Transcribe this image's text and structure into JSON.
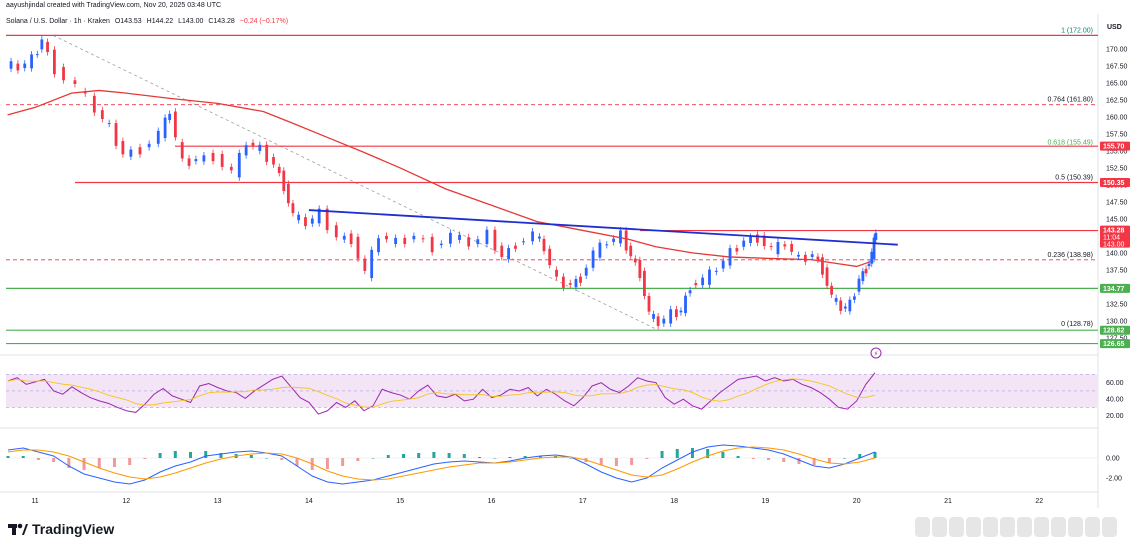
{
  "header": {
    "creator_line": "aayushjindal created with TradingView.com, Nov 20, 2025 03:48 UTC",
    "symbol": "Solana / U.S. Dollar · 1h · Kraken",
    "ohlc": {
      "open": "O143.53",
      "high": "H144.22",
      "low": "L143.00",
      "close": "C143.28",
      "change": "−0.24 (−0.17%)"
    },
    "currency": "USD"
  },
  "footer": {
    "brand": "TradingView"
  },
  "colors": {
    "up": "#2962ff",
    "down": "#f23645",
    "ma": "#e53935",
    "support": "#4caf50",
    "resistance": "#f23645",
    "trendline": "#1e2fd0",
    "rsi": "#9c27b0",
    "rsi_signal": "#f5c518",
    "macd": "#2962ff",
    "macd_signal": "#ff9800"
  },
  "chart_data": {
    "type": "candlestick",
    "timeframe": "1h",
    "y_axis_ticks": [
      "170.00",
      "167.50",
      "165.00",
      "162.50",
      "160.00",
      "157.50",
      "155.00",
      "152.50",
      "150.00",
      "147.50",
      "145.00",
      "142.50",
      "140.00",
      "137.50",
      "135.00",
      "132.50",
      "130.00",
      "127.50"
    ],
    "x_axis_ticks": [
      "11",
      "12",
      "13",
      "14",
      "15",
      "16",
      "17",
      "18",
      "19",
      "20",
      "21",
      "22"
    ],
    "ylim": [
      126.0,
      172.5
    ],
    "price_labels": [
      {
        "text": "155.70",
        "value": 155.7,
        "color": "#f23645"
      },
      {
        "text": "150.35",
        "value": 150.35,
        "color": "#f23645"
      },
      {
        "text": "143.28",
        "sub": "11:04",
        "sub2": "143.00",
        "value": 143.28,
        "color": "#f23645"
      },
      {
        "text": "134.77",
        "value": 134.77,
        "color": "#4caf50"
      },
      {
        "text": "128.62",
        "value": 128.62,
        "color": "#4caf50"
      },
      {
        "text": "126.65",
        "value": 126.65,
        "color": "#4caf50"
      }
    ],
    "horizontal_levels": [
      {
        "value": 172.0,
        "color": "#f23645",
        "style": "solid"
      },
      {
        "value": 161.8,
        "color": "#f23645",
        "style": "dashed"
      },
      {
        "value": 155.7,
        "color": "#f23645",
        "style": "solid"
      },
      {
        "value": 150.35,
        "color": "#f23645",
        "style": "solid"
      },
      {
        "value": 143.28,
        "color": "#f23645",
        "style": "solid"
      },
      {
        "value": 138.98,
        "color": "#f23645",
        "style": "dashed"
      },
      {
        "value": 134.77,
        "color": "#4caf50",
        "style": "solid"
      },
      {
        "value": 128.62,
        "color": "#4caf50",
        "style": "solid"
      },
      {
        "value": 126.65,
        "color": "#4caf50",
        "style": "solid"
      }
    ],
    "fib_levels": [
      {
        "label": "1 (172.00)",
        "value": 172.0
      },
      {
        "label": "0.764 (161.80)",
        "value": 161.8
      },
      {
        "label": "0.618 (155.49)",
        "value": 155.49
      },
      {
        "label": "0.5 (150.39)",
        "value": 150.39
      },
      {
        "label": "0.236 (138.98)",
        "value": 138.98
      },
      {
        "label": "0 (128.78)",
        "value": 128.78
      }
    ],
    "trendline": {
      "from": {
        "day": 14.0,
        "price": 146.3
      },
      "to": {
        "day": 20.45,
        "price": 141.2
      }
    },
    "diagonal_dashed": {
      "from": {
        "day": 11.2,
        "price": 172.0
      },
      "to": {
        "day": 17.8,
        "price": 128.8
      }
    },
    "moving_average": [
      {
        "day": 10.7,
        "price": 160.3
      },
      {
        "day": 11.0,
        "price": 161.4
      },
      {
        "day": 11.4,
        "price": 163.5
      },
      {
        "day": 11.7,
        "price": 163.9
      },
      {
        "day": 12.0,
        "price": 163.5
      },
      {
        "day": 12.5,
        "price": 162.7
      },
      {
        "day": 13.0,
        "price": 162.0
      },
      {
        "day": 13.5,
        "price": 160.8
      },
      {
        "day": 13.8,
        "price": 159.2
      },
      {
        "day": 14.2,
        "price": 157.0
      },
      {
        "day": 14.6,
        "price": 154.8
      },
      {
        "day": 15.0,
        "price": 152.5
      },
      {
        "day": 15.5,
        "price": 149.4
      },
      {
        "day": 16.0,
        "price": 147.0
      },
      {
        "day": 16.5,
        "price": 144.6
      },
      {
        "day": 17.0,
        "price": 143.3
      },
      {
        "day": 17.5,
        "price": 142.0
      },
      {
        "day": 17.8,
        "price": 140.9
      },
      {
        "day": 18.2,
        "price": 140.0
      },
      {
        "day": 18.6,
        "price": 139.4
      },
      {
        "day": 19.0,
        "price": 139.2
      },
      {
        "day": 19.5,
        "price": 139.0
      },
      {
        "day": 19.8,
        "price": 138.4
      },
      {
        "day": 20.0,
        "price": 138.0
      },
      {
        "day": 20.15,
        "price": 138.7
      }
    ],
    "candles_close_path": [
      {
        "day": 10.7,
        "price": 167.8
      },
      {
        "day": 10.85,
        "price": 167.2
      },
      {
        "day": 11.0,
        "price": 168.5
      },
      {
        "day": 11.1,
        "price": 171.4
      },
      {
        "day": 11.25,
        "price": 167.0
      },
      {
        "day": 11.5,
        "price": 164.5
      },
      {
        "day": 11.7,
        "price": 161.0
      },
      {
        "day": 11.85,
        "price": 158.4
      },
      {
        "day": 12.0,
        "price": 154.5
      },
      {
        "day": 12.2,
        "price": 155.2
      },
      {
        "day": 12.4,
        "price": 157.6
      },
      {
        "day": 12.5,
        "price": 160.8
      },
      {
        "day": 12.65,
        "price": 153.2
      },
      {
        "day": 12.8,
        "price": 153.8
      },
      {
        "day": 13.0,
        "price": 154.2
      },
      {
        "day": 13.2,
        "price": 151.8
      },
      {
        "day": 13.35,
        "price": 156.2
      },
      {
        "day": 13.5,
        "price": 155.2
      },
      {
        "day": 13.65,
        "price": 153.0
      },
      {
        "day": 13.75,
        "price": 149.8
      },
      {
        "day": 13.85,
        "price": 145.5
      },
      {
        "day": 14.0,
        "price": 144.3
      },
      {
        "day": 14.15,
        "price": 145.8
      },
      {
        "day": 14.35,
        "price": 142.3
      },
      {
        "day": 14.5,
        "price": 142.0
      },
      {
        "day": 14.65,
        "price": 137.0
      },
      {
        "day": 14.8,
        "price": 142.5
      },
      {
        "day": 15.0,
        "price": 141.5
      },
      {
        "day": 15.2,
        "price": 142.5
      },
      {
        "day": 15.4,
        "price": 140.8
      },
      {
        "day": 15.6,
        "price": 142.6
      },
      {
        "day": 15.8,
        "price": 141.3
      },
      {
        "day": 16.0,
        "price": 142.7
      },
      {
        "day": 16.15,
        "price": 139.4
      },
      {
        "day": 16.3,
        "price": 141.3
      },
      {
        "day": 16.5,
        "price": 142.8
      },
      {
        "day": 16.6,
        "price": 140.6
      },
      {
        "day": 16.75,
        "price": 135.8
      },
      {
        "day": 16.9,
        "price": 135.3
      },
      {
        "day": 17.0,
        "price": 136.3
      },
      {
        "day": 17.15,
        "price": 140.0
      },
      {
        "day": 17.3,
        "price": 141.6
      },
      {
        "day": 17.45,
        "price": 142.6
      },
      {
        "day": 17.55,
        "price": 139.5
      },
      {
        "day": 17.65,
        "price": 137.0
      },
      {
        "day": 17.75,
        "price": 131.0
      },
      {
        "day": 17.85,
        "price": 129.6
      },
      {
        "day": 18.0,
        "price": 131.0
      },
      {
        "day": 18.1,
        "price": 131.5
      },
      {
        "day": 18.2,
        "price": 135.2
      },
      {
        "day": 18.35,
        "price": 136.0
      },
      {
        "day": 18.5,
        "price": 137.7
      },
      {
        "day": 18.65,
        "price": 140.0
      },
      {
        "day": 18.8,
        "price": 141.8
      },
      {
        "day": 18.95,
        "price": 142.2
      },
      {
        "day": 19.1,
        "price": 140.5
      },
      {
        "day": 19.25,
        "price": 141.3
      },
      {
        "day": 19.4,
        "price": 139.0
      },
      {
        "day": 19.55,
        "price": 139.8
      },
      {
        "day": 19.65,
        "price": 137.5
      },
      {
        "day": 19.75,
        "price": 133.5
      },
      {
        "day": 19.85,
        "price": 131.8
      },
      {
        "day": 19.95,
        "price": 132.4
      },
      {
        "day": 20.05,
        "price": 136.2
      },
      {
        "day": 20.12,
        "price": 137.7
      },
      {
        "day": 20.18,
        "price": 139.8
      },
      {
        "day": 20.22,
        "price": 143.3
      }
    ],
    "rsi": {
      "ticks": [
        "60.00",
        "40.00",
        "20.00"
      ],
      "ylim": [
        10,
        85
      ],
      "band": [
        30,
        70
      ],
      "values": [
        62,
        66,
        58,
        61,
        64,
        50,
        46,
        55,
        48,
        42,
        38,
        35,
        30,
        26,
        24,
        34,
        46,
        53,
        44,
        40,
        36,
        56,
        59,
        54,
        50,
        48,
        41,
        50,
        57,
        64,
        68,
        55,
        42,
        36,
        22,
        26,
        36,
        30,
        38,
        26,
        32,
        52,
        48,
        45,
        40,
        50,
        57,
        44,
        42,
        46,
        38,
        40,
        52,
        42,
        45,
        52,
        50,
        54,
        44,
        52,
        46,
        38,
        32,
        42,
        56,
        60,
        52,
        48,
        56,
        66,
        62,
        60,
        42,
        34,
        40,
        32,
        28,
        38,
        48,
        56,
        64,
        66,
        68,
        62,
        66,
        62,
        64,
        58,
        54,
        48,
        40,
        30,
        28,
        38,
        58,
        72
      ]
    },
    "macd": {
      "ticks": [
        "0.00",
        "-2.00"
      ],
      "ylim": [
        -3.2,
        2.6
      ],
      "macd": [
        0.8,
        1.0,
        0.6,
        0.2,
        -0.8,
        -1.6,
        -2.0,
        -2.4,
        -2.6,
        -2.2,
        -1.4,
        -0.8,
        -0.4,
        0.2,
        0.4,
        0.6,
        0.7,
        0.5,
        0.2,
        -0.8,
        -1.8,
        -2.4,
        -2.6,
        -2.4,
        -2.2,
        -1.8,
        -1.4,
        -1.0,
        -0.6,
        -0.4,
        -0.3,
        -0.4,
        -0.5,
        -0.3,
        0.0,
        0.2,
        0.3,
        0.1,
        -0.6,
        -1.4,
        -2.0,
        -2.4,
        -2.0,
        -1.0,
        -0.2,
        0.6,
        1.1,
        1.3,
        1.2,
        1.0,
        0.8,
        0.4,
        -0.2,
        -0.8,
        -1.0,
        -0.6,
        0.0,
        0.6
      ],
      "signal": [
        0.6,
        0.8,
        0.8,
        0.6,
        0.2,
        -0.4,
        -1.0,
        -1.5,
        -1.9,
        -2.1,
        -1.9,
        -1.5,
        -1.0,
        -0.5,
        -0.1,
        0.2,
        0.4,
        0.5,
        0.4,
        0.0,
        -0.6,
        -1.3,
        -1.8,
        -2.1,
        -2.2,
        -2.1,
        -1.8,
        -1.5,
        -1.2,
        -0.9,
        -0.7,
        -0.5,
        -0.5,
        -0.4,
        -0.2,
        0.0,
        0.1,
        0.1,
        -0.2,
        -0.7,
        -1.2,
        -1.7,
        -1.9,
        -1.7,
        -1.1,
        -0.4,
        0.2,
        0.7,
        1.0,
        1.1,
        1.0,
        0.8,
        0.4,
        -0.1,
        -0.5,
        -0.6,
        -0.4,
        0.0
      ]
    }
  }
}
